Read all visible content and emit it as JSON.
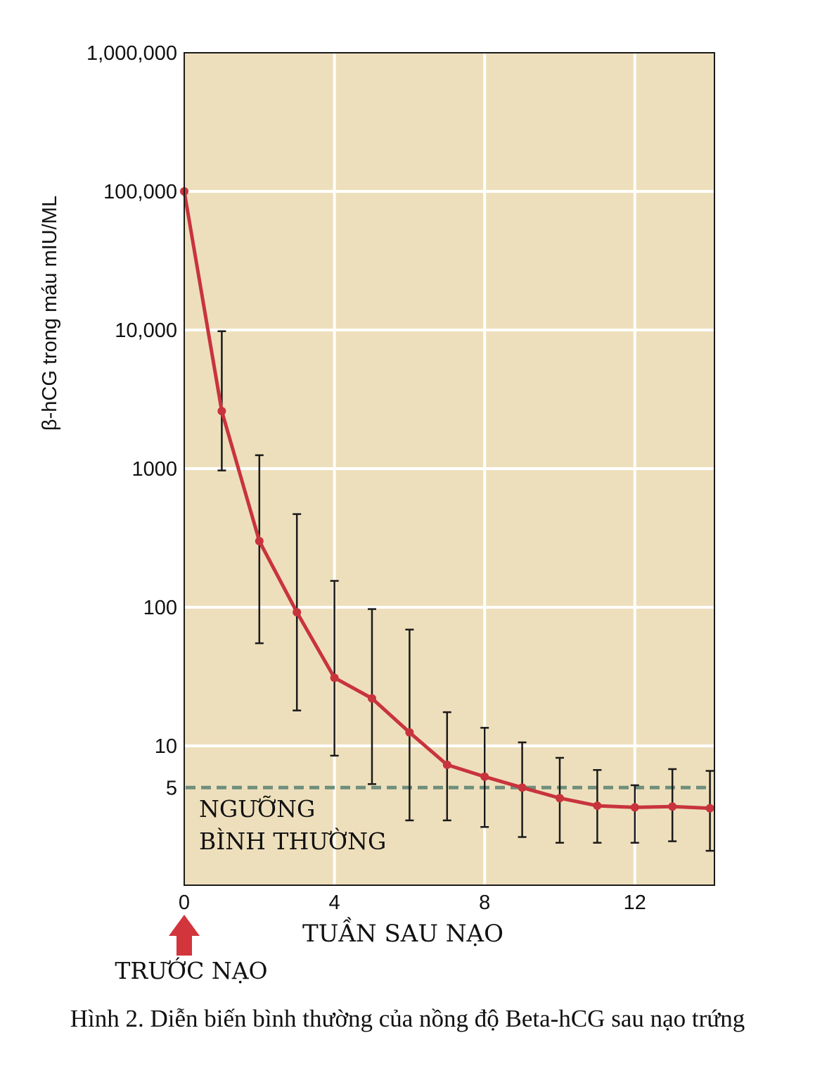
{
  "chart_data": {
    "type": "line",
    "ylabel": "β-hCG trong máu mIU/ML",
    "xlabel": "TUẦN SAU NẠO",
    "y_scale": "log",
    "ylim": [
      1,
      1000000
    ],
    "xlim": [
      0,
      14
    ],
    "y_ticks": [
      {
        "value": 1000000,
        "label": "1,000,000"
      },
      {
        "value": 100000,
        "label": "100,000"
      },
      {
        "value": 10000,
        "label": "10,000"
      },
      {
        "value": 1000,
        "label": "1000"
      },
      {
        "value": 100,
        "label": "100"
      },
      {
        "value": 10,
        "label": "10"
      },
      {
        "value": 5,
        "label": "5"
      }
    ],
    "x_ticks": [
      {
        "value": 0,
        "label": "0"
      },
      {
        "value": 4,
        "label": "4"
      },
      {
        "value": 8,
        "label": "8"
      },
      {
        "value": 12,
        "label": "12"
      }
    ],
    "series": [
      {
        "color": "#c8343c",
        "points": [
          {
            "x": 0,
            "y": 100000
          },
          {
            "x": 1,
            "y": 2600,
            "err_low": 970,
            "err_high": 9800
          },
          {
            "x": 2,
            "y": 300,
            "err_low": 55,
            "err_high": 1250
          },
          {
            "x": 3,
            "y": 92,
            "err_low": 18,
            "err_high": 470
          },
          {
            "x": 4,
            "y": 31,
            "err_low": 8.5,
            "err_high": 155
          },
          {
            "x": 5,
            "y": 22,
            "err_low": 5.3,
            "err_high": 97
          },
          {
            "x": 6,
            "y": 12.5,
            "err_low": 2.9,
            "err_high": 69
          },
          {
            "x": 7,
            "y": 7.3,
            "err_low": 2.9,
            "err_high": 17.5
          },
          {
            "x": 8,
            "y": 6.0,
            "err_low": 2.6,
            "err_high": 13.5
          },
          {
            "x": 9,
            "y": 5.0,
            "err_low": 2.2,
            "err_high": 10.6
          },
          {
            "x": 10,
            "y": 4.2,
            "err_low": 2.0,
            "err_high": 8.2
          },
          {
            "x": 11,
            "y": 3.7,
            "err_low": 2.0,
            "err_high": 6.7
          },
          {
            "x": 12,
            "y": 3.6,
            "err_low": 2.0,
            "err_high": 5.2
          },
          {
            "x": 13,
            "y": 3.65,
            "err_low": 2.05,
            "err_high": 6.8
          },
          {
            "x": 14,
            "y": 3.55,
            "err_low": 1.75,
            "err_high": 6.6
          }
        ]
      }
    ],
    "threshold": {
      "value": 5,
      "label_line1": "NGƯỠNG",
      "label_line2": "BÌNH THƯỜNG",
      "color": "#6f8f7d"
    },
    "marker_label": "TRƯỚC NẠO",
    "grid": true,
    "colors": {
      "plot_bg": "#eedfbc",
      "grid": "#ffffff",
      "line": "#c8343c",
      "arrow": "#d2353c",
      "error_bar": "#1a1a1a"
    }
  },
  "caption": "Hình 2. Diễn biến bình thường của nồng độ Beta-hCG sau nạo trứng"
}
